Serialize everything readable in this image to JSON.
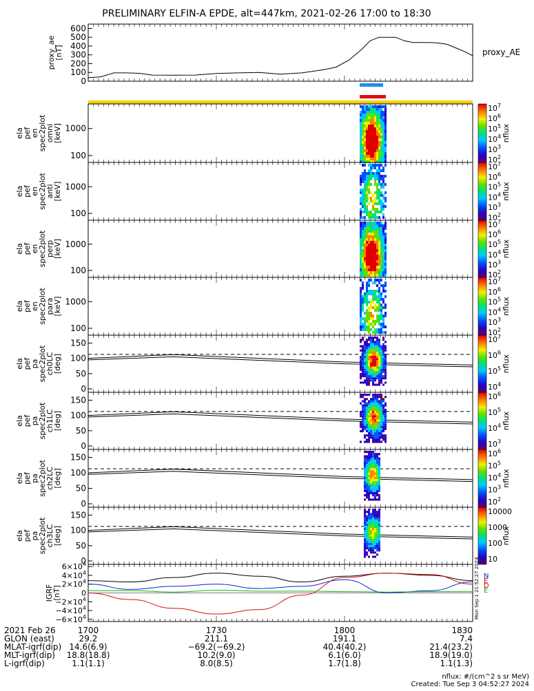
{
  "title": "PRELIMINARY ELFIN-A EPDE, alt=447km, 2021-02-26 17:00 to 18:30",
  "colors": {
    "ae_line": "#000000",
    "bar_blue": "#1e8cf0",
    "bar_red": "#e01010",
    "bar_yellow": "#f5d200",
    "igrf_black": "#000000",
    "igrf_blue": "#1020d0",
    "igrf_red": "#d01010",
    "igrf_green": "#10b010"
  },
  "chart_data": [
    {
      "type": "line",
      "name": "proxy_ae",
      "ylabel": "proxy_ae [nT]",
      "right_label": "proxy_AE",
      "ylim": [
        0,
        650
      ],
      "yticks": [
        "0",
        "100",
        "200",
        "300",
        "400",
        "500",
        "600"
      ],
      "x": [
        0,
        3,
        6,
        9,
        12,
        15,
        20,
        25,
        30,
        35,
        40,
        45,
        50,
        55,
        58,
        61,
        64,
        66,
        68,
        70,
        72,
        74,
        76,
        78,
        80,
        82,
        84,
        86,
        88,
        90
      ],
      "y": [
        40,
        50,
        95,
        95,
        90,
        70,
        68,
        70,
        88,
        95,
        100,
        80,
        95,
        130,
        160,
        240,
        360,
        460,
        500,
        500,
        500,
        460,
        440,
        440,
        440,
        435,
        420,
        380,
        340,
        290
      ]
    },
    {
      "type": "heatmap",
      "name": "spec_omni",
      "ylabel_lines": [
        "ela",
        "pef",
        "en",
        "spec2plot",
        "omni",
        "[keV]"
      ],
      "yticks": [
        "100",
        "1000"
      ],
      "colorbar_ticks": [
        "10^7",
        "10^6",
        "10^5",
        "10^4",
        "10^3",
        "10^2"
      ],
      "colorbar_label": "nflux"
    },
    {
      "type": "heatmap",
      "name": "spec_anti",
      "ylabel_lines": [
        "ela",
        "pef",
        "en",
        "spec2plot",
        "anti",
        "[keV]"
      ],
      "yticks": [
        "100",
        "1000"
      ],
      "colorbar_ticks": [
        "10^7",
        "10^6",
        "10^5",
        "10^4",
        "10^3",
        "10^2"
      ],
      "colorbar_label": "nflux"
    },
    {
      "type": "heatmap",
      "name": "spec_perp",
      "ylabel_lines": [
        "ela",
        "pef",
        "en",
        "spec2plot",
        "perp",
        "[keV]"
      ],
      "yticks": [
        "100",
        "1000"
      ],
      "colorbar_ticks": [
        "10^7",
        "10^6",
        "10^5",
        "10^4",
        "10^3",
        "10^2"
      ],
      "colorbar_label": "nflux"
    },
    {
      "type": "heatmap",
      "name": "spec_para",
      "ylabel_lines": [
        "ela",
        "pef",
        "en",
        "spec2plot",
        "para",
        "[keV]"
      ],
      "yticks": [
        "100",
        "1000"
      ],
      "colorbar_ticks": [
        "10^7",
        "10^6",
        "10^5",
        "10^4",
        "10^3",
        "10^2"
      ],
      "colorbar_label": "nflux"
    },
    {
      "type": "heatmap",
      "name": "pa_ch0",
      "ylabel_lines": [
        "ela",
        "pef",
        "pa",
        "spec2plot",
        "ch0LC",
        "[deg]"
      ],
      "yticks": [
        "0",
        "50",
        "100",
        "150"
      ],
      "colorbar_ticks": [
        "10^7",
        "10^6",
        "10^5",
        "10^4"
      ],
      "colorbar_label": "nflux"
    },
    {
      "type": "heatmap",
      "name": "pa_ch1",
      "ylabel_lines": [
        "ela",
        "pef",
        "pa",
        "spec2plot",
        "ch1LC",
        "[deg]"
      ],
      "yticks": [
        "0",
        "50",
        "100",
        "150"
      ],
      "colorbar_ticks": [
        "10^6",
        "10^5",
        "10^4",
        "10^3"
      ],
      "colorbar_label": "nflux"
    },
    {
      "type": "heatmap",
      "name": "pa_ch2",
      "ylabel_lines": [
        "ela",
        "pef",
        "pa",
        "spec2plot",
        "ch2LC",
        "[deg]"
      ],
      "yticks": [
        "0",
        "50",
        "100",
        "150"
      ],
      "colorbar_ticks": [
        "10^6",
        "10^5",
        "10^4",
        "10^3",
        "10^2"
      ],
      "colorbar_label": "nflux"
    },
    {
      "type": "heatmap",
      "name": "pa_ch3",
      "ylabel_lines": [
        "ela",
        "pef",
        "pa",
        "spec2plot",
        "ch3LC",
        "[deg]"
      ],
      "yticks": [
        "0",
        "50",
        "100",
        "150"
      ],
      "colorbar_ticks": [
        "10000",
        "1000",
        "100",
        "10"
      ],
      "colorbar_label": "nflux"
    },
    {
      "type": "line",
      "name": "igrf",
      "ylabel": "IGRF [nT]",
      "yticks": [
        "6×10^4",
        "4×10^4",
        "2×10^4",
        "0",
        "−2×10^4",
        "−4×10^4",
        "−6×10^4"
      ],
      "ylim": [
        -65000,
        65000
      ],
      "legend": [
        "N",
        "E",
        "D",
        "E"
      ],
      "series": [
        {
          "color": "igrf_black",
          "x": [
            0,
            10,
            20,
            30,
            40,
            50,
            60,
            70,
            80,
            90
          ],
          "y": [
            28000,
            25000,
            35000,
            45000,
            38000,
            25000,
            38000,
            45000,
            40000,
            28000
          ]
        },
        {
          "color": "igrf_blue",
          "x": [
            0,
            10,
            20,
            30,
            40,
            50,
            60,
            70,
            80,
            90
          ],
          "y": [
            20000,
            8000,
            15000,
            20000,
            10000,
            15000,
            30000,
            0,
            5000,
            25000
          ]
        },
        {
          "color": "igrf_red",
          "x": [
            0,
            10,
            20,
            30,
            40,
            50,
            60,
            70,
            80,
            90
          ],
          "y": [
            0,
            -15000,
            -35000,
            -48000,
            -38000,
            -5000,
            35000,
            45000,
            42000,
            20000
          ]
        },
        {
          "color": "igrf_green",
          "x": [
            0,
            10,
            20,
            30,
            40,
            50,
            60,
            70,
            80,
            90
          ],
          "y": [
            5000,
            5000,
            2000,
            6000,
            4000,
            4000,
            3000,
            2000,
            3000,
            3000
          ]
        }
      ],
      "side_text": "Mon Sep 1 21:52:27 2024"
    }
  ],
  "x_axis": {
    "row_labels": [
      "2021 Feb 26",
      "GLON (east)",
      "MLAT-igrf(dip)",
      "MLT-igrf(dip)",
      "L-igrf(dip)"
    ],
    "ticks": [
      {
        "t": 0,
        "values": [
          "1700",
          "29.2",
          "14.6(6.9)",
          "18.8(18.8)",
          "1.1(1.1)"
        ]
      },
      {
        "t": 30,
        "values": [
          "1730",
          "211.1",
          "−69.2(−69.2)",
          "10.2(9.0)",
          "8.0(8.5)"
        ]
      },
      {
        "t": 60,
        "values": [
          "1800",
          "191.1",
          "40.4(40.2)",
          "6.1(6.0)",
          "1.7(1.8)"
        ]
      },
      {
        "t": 90,
        "values": [
          "1830",
          "7.4",
          "21.4(23.2)",
          "18.9(19.0)",
          "1.1(1.3)"
        ]
      }
    ]
  },
  "footer": {
    "units": "nflux: #/(cm^2 s sr MeV)",
    "created": "Created: Tue Sep  3 04:52:27 2024"
  }
}
